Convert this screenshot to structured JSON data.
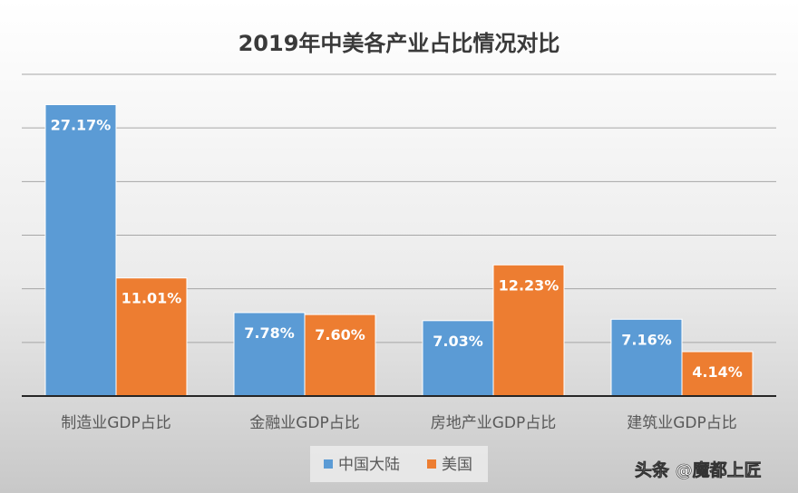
{
  "chart_data": {
    "type": "bar",
    "title": "2019年中美各产业占比情况对比",
    "categories": [
      "制造业GDP占比",
      "金融业GDP占比",
      "房地产业GDP占比",
      "建筑业GDP占比"
    ],
    "series": [
      {
        "name": "中国大陆",
        "values": [
          27.17,
          7.78,
          7.03,
          7.16
        ],
        "labels": [
          "27.17%",
          "7.78%",
          "7.03%",
          "7.16%"
        ],
        "color": "#5b9bd5"
      },
      {
        "name": "美国",
        "values": [
          11.01,
          7.6,
          12.23,
          4.14
        ],
        "labels": [
          "11.01%",
          "7.60%",
          "12.23%",
          "4.14%"
        ],
        "color": "#ed7d31"
      }
    ],
    "xlabel": "",
    "ylabel": "",
    "ylim": [
      0,
      30
    ],
    "grid": true,
    "gridStep": 5,
    "legend": "bottom"
  },
  "watermark": "头条 @魔都上匠"
}
